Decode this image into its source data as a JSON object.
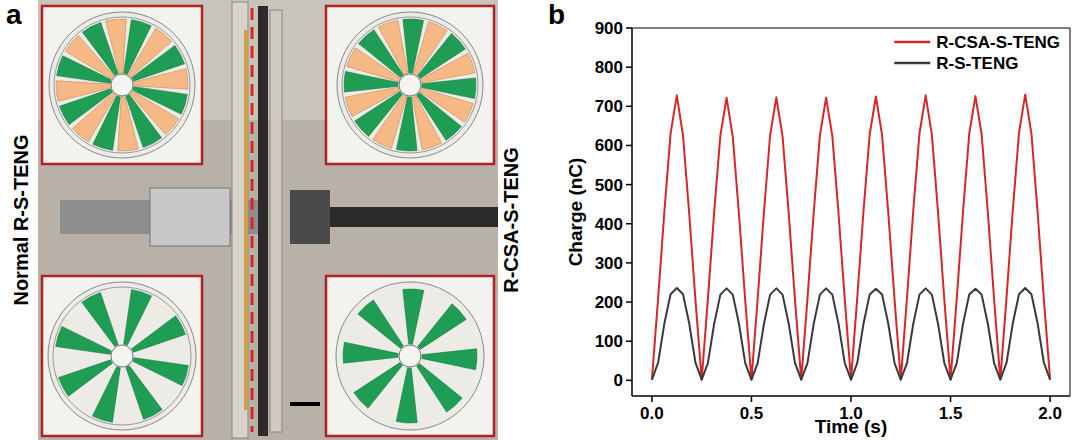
{
  "figure": {
    "panels": [
      {
        "label": "a",
        "left_text": "Normal R-S-TENG",
        "right_text": "R-CSA-S-TENG"
      },
      {
        "label": "b"
      }
    ]
  },
  "chart_data": {
    "type": "line",
    "x_label": "Time (s)",
    "y_label": "Charge (nC)",
    "x": [
      0,
      0.03125,
      0.0625,
      0.09375,
      0.125,
      0.15625,
      0.1875,
      0.21875,
      0.25,
      0.28125,
      0.3125,
      0.34375,
      0.375,
      0.40625,
      0.4375,
      0.46875,
      0.5,
      0.53125,
      0.5625,
      0.59375,
      0.625,
      0.65625,
      0.6875,
      0.71875,
      0.75,
      0.78125,
      0.8125,
      0.84375,
      0.875,
      0.90625,
      0.9375,
      0.96875,
      1,
      1.03125,
      1.0625,
      1.09375,
      1.125,
      1.15625,
      1.1875,
      1.21875,
      1.25,
      1.28125,
      1.3125,
      1.34375,
      1.375,
      1.40625,
      1.4375,
      1.46875,
      1.5,
      1.53125,
      1.5625,
      1.59375,
      1.625,
      1.65625,
      1.6875,
      1.71875,
      1.75,
      1.78125,
      1.8125,
      1.84375,
      1.875,
      1.90625,
      1.9375,
      1.96875,
      2
    ],
    "series": [
      {
        "name": "R-CSA-S-TENG",
        "color": "#d62728",
        "values": [
          2,
          210,
          430,
          630,
          728,
          625,
          425,
          205,
          2,
          208,
          428,
          625,
          722,
          622,
          423,
          204,
          2,
          209,
          428,
          626,
          723,
          623,
          424,
          205,
          2,
          208,
          427,
          625,
          722,
          624,
          425,
          206,
          2,
          210,
          430,
          628,
          725,
          626,
          426,
          206,
          2,
          211,
          432,
          630,
          728,
          627,
          427,
          206,
          2,
          210,
          430,
          629,
          726,
          628,
          428,
          207,
          2,
          212,
          433,
          632,
          730,
          630,
          428,
          206,
          2
        ]
      },
      {
        "name": "R-S-TENG",
        "color": "#3a3a3a",
        "values": [
          2,
          45,
          145,
          220,
          236,
          220,
          145,
          45,
          2,
          44,
          144,
          219,
          235,
          219,
          144,
          44,
          2,
          44,
          144,
          219,
          235,
          219,
          144,
          44,
          2,
          44,
          144,
          219,
          235,
          219,
          144,
          44,
          2,
          44,
          144,
          219,
          234,
          219,
          144,
          44,
          2,
          44,
          144,
          219,
          235,
          219,
          144,
          44,
          2,
          44,
          144,
          219,
          234,
          219,
          144,
          44,
          2,
          45,
          145,
          220,
          236,
          220,
          145,
          45,
          2
        ]
      }
    ],
    "xlim": [
      -0.1,
      2.1
    ],
    "xticks": [
      {
        "value": 0,
        "label": "0.0"
      },
      0.5,
      {
        "value": 1,
        "label": "1.0"
      },
      1.5,
      {
        "value": 2,
        "label": "2.0"
      }
    ],
    "ylim": [
      -40,
      900
    ],
    "yticks": [
      0,
      100,
      200,
      300,
      400,
      500,
      600,
      700,
      800,
      900
    ],
    "grid": false,
    "legend": "upper right"
  }
}
